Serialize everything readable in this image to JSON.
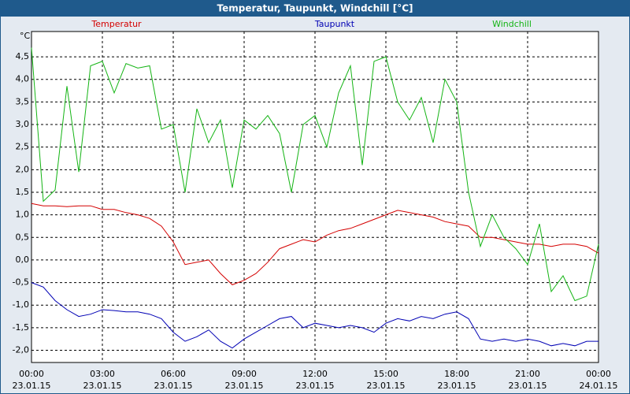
{
  "chart_data": {
    "type": "line",
    "title": "Temperatur, Taupunkt, Windchill [°C]",
    "y_unit": "°C",
    "x": [
      0,
      0.5,
      1,
      1.5,
      2,
      2.5,
      3,
      3.5,
      4,
      4.5,
      5,
      5.5,
      6,
      6.5,
      7,
      7.5,
      8,
      8.5,
      9,
      9.5,
      10,
      10.5,
      11,
      11.5,
      12,
      12.5,
      13,
      13.5,
      14,
      14.5,
      15,
      15.5,
      16,
      16.5,
      17,
      17.5,
      18,
      18.5,
      19,
      19.5,
      20,
      20.5,
      21,
      21.5,
      22,
      22.5,
      23,
      23.5,
      24
    ],
    "xlim": [
      0,
      24
    ],
    "xticks": [
      {
        "value": 0,
        "label": "00:00",
        "date": "23.01.15"
      },
      {
        "value": 3,
        "label": "03:00",
        "date": "23.01.15"
      },
      {
        "value": 6,
        "label": "06:00",
        "date": "23.01.15"
      },
      {
        "value": 9,
        "label": "09:00",
        "date": "23.01.15"
      },
      {
        "value": 12,
        "label": "12:00",
        "date": "23.01.15"
      },
      {
        "value": 15,
        "label": "15:00",
        "date": "23.01.15"
      },
      {
        "value": 18,
        "label": "18:00",
        "date": "23.01.15"
      },
      {
        "value": 21,
        "label": "21:00",
        "date": "23.01.15"
      },
      {
        "value": 24,
        "label": "00:00",
        "date": "24.01.15"
      }
    ],
    "ylim": [
      -2.27,
      5.06
    ],
    "yticks": [
      {
        "value": -2.0,
        "label": "-2,0"
      },
      {
        "value": -1.5,
        "label": "-1,5"
      },
      {
        "value": -1.0,
        "label": "-1,0"
      },
      {
        "value": -0.5,
        "label": "-0,5"
      },
      {
        "value": 0,
        "label": "0,0"
      },
      {
        "value": 0.5,
        "label": "0,5"
      },
      {
        "value": 1.0,
        "label": "1,0"
      },
      {
        "value": 1.5,
        "label": "1,5"
      },
      {
        "value": 2.0,
        "label": "2,0"
      },
      {
        "value": 2.5,
        "label": "2,5"
      },
      {
        "value": 3.0,
        "label": "3,0"
      },
      {
        "value": 3.5,
        "label": "3,5"
      },
      {
        "value": 4.0,
        "label": "4,0"
      },
      {
        "value": 4.5,
        "label": "4,5"
      }
    ],
    "grid": true,
    "series": [
      {
        "name": "Temperatur",
        "color": "#d40000",
        "values": [
          1.25,
          1.2,
          1.2,
          1.18,
          1.2,
          1.2,
          1.12,
          1.12,
          1.05,
          1.0,
          0.92,
          0.75,
          0.4,
          -0.1,
          -0.05,
          0.0,
          -0.3,
          -0.55,
          -0.45,
          -0.3,
          -0.05,
          0.25,
          0.35,
          0.45,
          0.4,
          0.55,
          0.65,
          0.7,
          0.8,
          0.9,
          1.0,
          1.1,
          1.05,
          1.0,
          0.95,
          0.85,
          0.8,
          0.75,
          0.5,
          0.5,
          0.45,
          0.4,
          0.35,
          0.35,
          0.3,
          0.35,
          0.35,
          0.3,
          0.15
        ]
      },
      {
        "name": "Taupunkt",
        "color": "#0000b4",
        "values": [
          -0.5,
          -0.6,
          -0.9,
          -1.1,
          -1.25,
          -1.2,
          -1.1,
          -1.12,
          -1.15,
          -1.15,
          -1.2,
          -1.3,
          -1.6,
          -1.8,
          -1.7,
          -1.55,
          -1.8,
          -1.95,
          -1.75,
          -1.6,
          -1.45,
          -1.3,
          -1.25,
          -1.5,
          -1.4,
          -1.45,
          -1.5,
          -1.45,
          -1.5,
          -1.6,
          -1.4,
          -1.3,
          -1.35,
          -1.25,
          -1.3,
          -1.2,
          -1.15,
          -1.3,
          -1.75,
          -1.8,
          -1.75,
          -1.8,
          -1.75,
          -1.8,
          -1.9,
          -1.85,
          -1.9,
          -1.8,
          -1.8
        ]
      },
      {
        "name": "Windchill",
        "color": "#14b414",
        "values": [
          4.7,
          1.3,
          1.55,
          3.85,
          1.95,
          4.3,
          4.4,
          3.7,
          4.35,
          4.25,
          4.3,
          2.9,
          3.0,
          1.5,
          3.35,
          2.6,
          3.1,
          1.6,
          3.1,
          2.9,
          3.2,
          2.8,
          1.5,
          3.0,
          3.2,
          2.5,
          3.7,
          4.3,
          2.1,
          4.4,
          4.5,
          3.5,
          3.1,
          3.6,
          2.6,
          4.0,
          3.5,
          1.5,
          0.3,
          1.0,
          0.5,
          0.25,
          -0.1,
          0.8,
          -0.7,
          -0.35,
          -0.9,
          -0.8,
          0.35
        ]
      }
    ]
  }
}
